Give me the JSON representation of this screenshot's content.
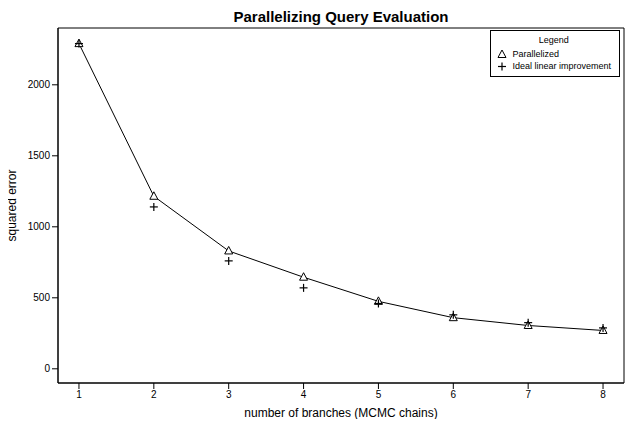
{
  "chart_data": {
    "type": "line",
    "title": "Parallelizing Query Evaluation",
    "x_label": "number of branches (MCMC chains)",
    "y_label": "squared error",
    "x": [
      1,
      2,
      3,
      4,
      5,
      6,
      7,
      8
    ],
    "series": [
      {
        "name": "Parallelized",
        "color": "#000000",
        "marker": "triangle",
        "line_style": "solid",
        "values": [
          2290,
          1215,
          830,
          645,
          475,
          360,
          305,
          270
        ]
      },
      {
        "name": "Ideal linear improvement",
        "color": "#000000",
        "marker": "plus",
        "line_style": "none",
        "values": [
          2290,
          1140,
          760,
          570,
          460,
          380,
          325,
          288
        ]
      }
    ],
    "xlim": [
      0.72,
      8.28
    ],
    "xticks": [
      1,
      2,
      3,
      4,
      5,
      6,
      7,
      8
    ],
    "ylim": [
      -100,
      2400
    ],
    "yticks": [
      0,
      500,
      1000,
      1500,
      2000
    ],
    "grid": false,
    "legend": "upper right",
    "legend_title": "Legend"
  }
}
